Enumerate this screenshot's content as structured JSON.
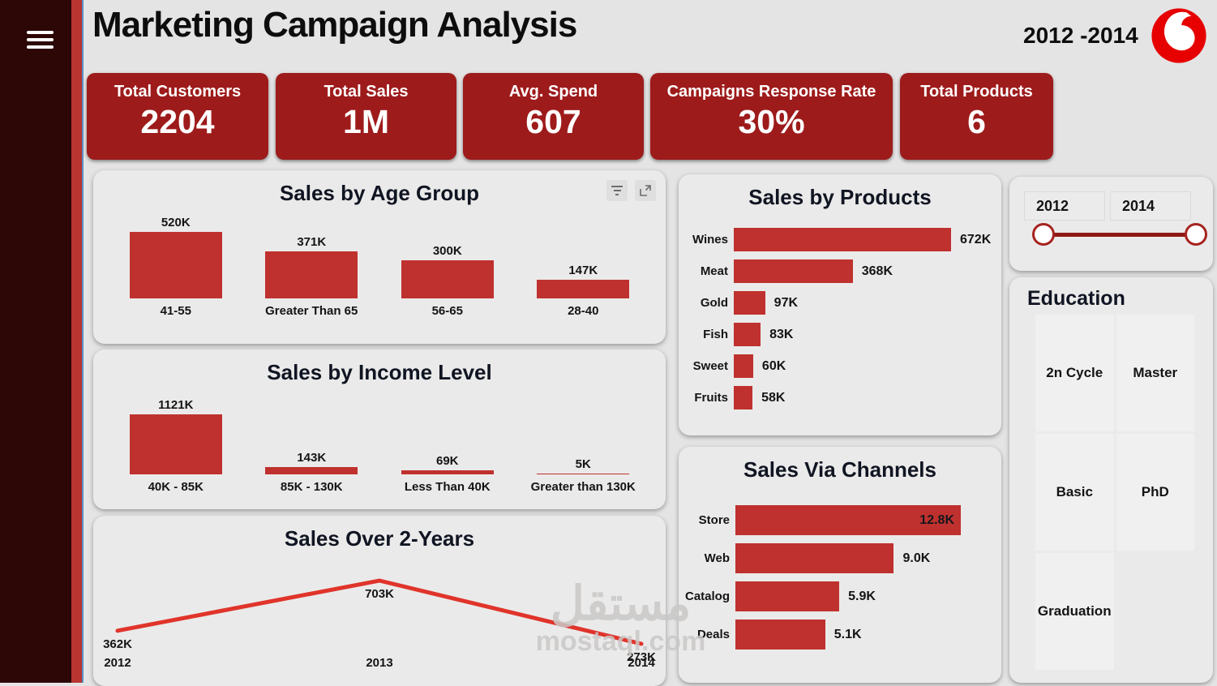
{
  "header": {
    "title": "Marketing Campaign Analysis",
    "period": "2012 -2014"
  },
  "icons": {
    "menu": "hamburger",
    "card_tools": [
      "filter",
      "focus-mode-expand"
    ],
    "logo": "vodafone-speechmark"
  },
  "kpis": [
    {
      "label": "Total Customers",
      "value": "2204"
    },
    {
      "label": "Total Sales",
      "value": "1M"
    },
    {
      "label": "Avg. Spend",
      "value": "607"
    },
    {
      "label": "Campaigns Response Rate",
      "value": "30%"
    },
    {
      "label": "Total Products",
      "value": "6"
    }
  ],
  "slider": {
    "start": "2012",
    "end": "2014"
  },
  "education": {
    "title": "Education",
    "cells": [
      "2n Cycle",
      "Master",
      "Basic",
      "PhD",
      "Graduation"
    ]
  },
  "watermark": {
    "line1": "مستقل",
    "line2": "mostaql.com"
  },
  "colors": {
    "kpi": "#9e1b1b",
    "bar": "#bf312e",
    "line": "#e0342b",
    "sidebar": "#2d0606",
    "stripe": "#b93531",
    "logo": "#e60000",
    "card": "#ebeaea",
    "title_text": "#101522"
  },
  "chart_data": [
    {
      "type": "bar",
      "orientation": "vertical",
      "title": "Sales by Age Group",
      "categories": [
        "41-55",
        "Greater Than 65",
        "56-65",
        "28-40"
      ],
      "values": [
        520000,
        371000,
        300000,
        147000
      ],
      "value_labels": [
        "520K",
        "371K",
        "300K",
        "147K"
      ],
      "bar_color": "#bf312e",
      "grid": false,
      "legend": "none"
    },
    {
      "type": "bar",
      "orientation": "vertical",
      "title": "Sales by Income Level",
      "categories": [
        "40K - 85K",
        "85K - 130K",
        "Less Than 40K",
        "Greater than 130K"
      ],
      "values": [
        1121000,
        143000,
        69000,
        5000
      ],
      "value_labels": [
        "1121K",
        "143K",
        "69K",
        "5K"
      ],
      "bar_color": "#bf312e",
      "grid": false,
      "legend": "none"
    },
    {
      "type": "line",
      "title": "Sales Over 2-Years",
      "x": [
        "2012",
        "2013",
        "2014"
      ],
      "values": [
        362000,
        703000,
        273000
      ],
      "value_labels": [
        "362K",
        "703K",
        "273K"
      ],
      "line_color": "#e0342b",
      "grid": false,
      "legend": "none"
    },
    {
      "type": "bar",
      "orientation": "horizontal",
      "title": "Sales by Products",
      "categories": [
        "Wines",
        "Meat",
        "Gold",
        "Fish",
        "Sweet",
        "Fruits"
      ],
      "values": [
        672000,
        368000,
        97000,
        83000,
        60000,
        58000
      ],
      "value_labels": [
        "672K",
        "368K",
        "97K",
        "83K",
        "60K",
        "58K"
      ],
      "bar_color": "#bf312e",
      "grid": false,
      "legend": "none"
    },
    {
      "type": "bar",
      "orientation": "horizontal",
      "title": "Sales Via Channels",
      "categories": [
        "Store",
        "Web",
        "Catalog",
        "Deals"
      ],
      "values": [
        12800,
        9000,
        5900,
        5100
      ],
      "value_labels": [
        "12.8K",
        "9.0K",
        "5.9K",
        "5.1K"
      ],
      "bar_color": "#bf312e",
      "grid": false,
      "legend": "none"
    },
    {
      "type": "table",
      "title": "Education",
      "categories": [
        "2n Cycle",
        "Master",
        "Basic",
        "PhD",
        "Graduation"
      ]
    }
  ]
}
